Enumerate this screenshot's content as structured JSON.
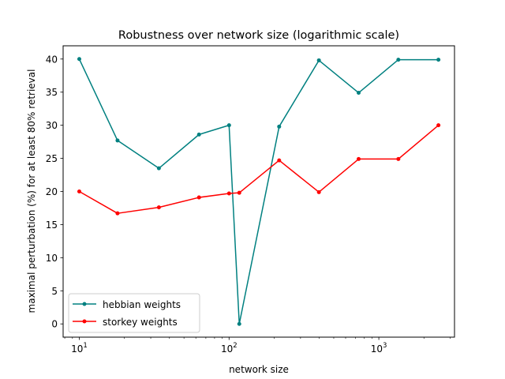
{
  "chart_data": {
    "type": "line",
    "title": "Robustness over network size (logarithmic scale)",
    "xlabel": "network size",
    "ylabel": "maximal perturbation (%) for at least 80% retrieval",
    "x_scale": "log",
    "xlim": [
      7.8,
      3200
    ],
    "ylim": [
      -2,
      42
    ],
    "grid": false,
    "legend_position": "lower-left",
    "x_ticks": [
      {
        "value": 10,
        "base": "10",
        "exp": "1"
      },
      {
        "value": 100,
        "base": "10",
        "exp": "2"
      },
      {
        "value": 1000,
        "base": "10",
        "exp": "3"
      }
    ],
    "y_ticks": [
      0,
      5,
      10,
      15,
      20,
      25,
      30,
      35,
      40
    ],
    "series": [
      {
        "name": "hebbian weights",
        "color": "#008080",
        "x": [
          10,
          18,
          34,
          63,
          100,
          117,
          216,
          398,
          733,
          1350,
          2500
        ],
        "y": [
          40,
          27.7,
          23.5,
          28.6,
          30,
          0,
          29.8,
          39.8,
          34.9,
          39.9,
          39.9
        ]
      },
      {
        "name": "storkey weights",
        "color": "#ff0000",
        "x": [
          10,
          18,
          34,
          63,
          100,
          117,
          216,
          398,
          733,
          1350,
          2500
        ],
        "y": [
          20,
          16.7,
          17.6,
          19.1,
          19.7,
          19.8,
          24.7,
          19.9,
          24.9,
          24.9,
          30
        ]
      }
    ]
  }
}
